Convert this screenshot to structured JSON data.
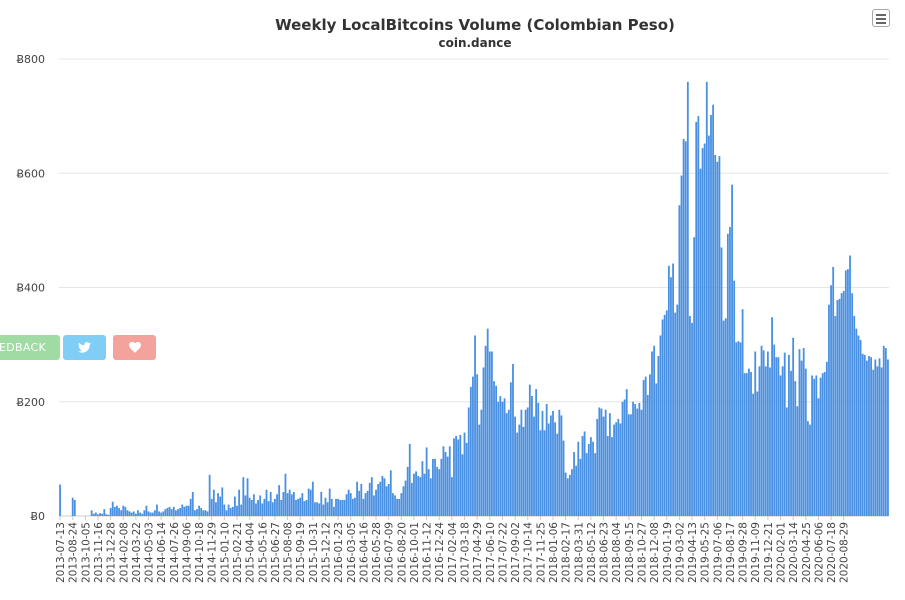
{
  "header": {
    "title": "Weekly LocalBitcoins Volume (Colombian Peso)",
    "subtitle": "coin.dance"
  },
  "buttons": {
    "feedback_label": "FEEDBACK",
    "menu_icon": "hamburger-menu-icon",
    "twitter_icon": "twitter-bird-icon",
    "heart_icon": "heart-icon"
  },
  "colors": {
    "bar": "#4a90e2",
    "feedback": "#9fdba2",
    "twitter": "#80cdf5",
    "heart": "#f3a29c"
  },
  "chart_data": {
    "type": "bar",
    "title": "Weekly LocalBitcoins Volume (Colombian Peso)",
    "subtitle": "coin.dance",
    "xlabel": "",
    "ylabel": "",
    "ylim": [
      0,
      800
    ],
    "y_ticks": [
      "Ƀ0",
      "Ƀ200",
      "Ƀ400",
      "Ƀ600",
      "Ƀ800"
    ],
    "grid": true,
    "start_week": "2013-07-13",
    "x_tick_labels": [
      "2013-07-13",
      "2013-08-24",
      "2013-10-05",
      "2013-11-16",
      "2013-12-28",
      "2014-02-08",
      "2014-03-22",
      "2014-05-03",
      "2014-06-14",
      "2014-07-26",
      "2014-09-06",
      "2014-10-18",
      "2014-11-29",
      "2015-01-10",
      "2015-02-21",
      "2015-04-04",
      "2015-05-16",
      "2015-06-27",
      "2015-08-08",
      "2015-09-19",
      "2015-10-31",
      "2015-12-12",
      "2016-01-23",
      "2016-03-05",
      "2016-04-16",
      "2016-05-28",
      "2016-07-09",
      "2016-08-20",
      "2016-10-01",
      "2016-11-12",
      "2016-12-24",
      "2017-02-04",
      "2017-03-18",
      "2017-04-29",
      "2017-06-10",
      "2017-07-22",
      "2017-09-02",
      "2017-10-14",
      "2017-11-25",
      "2018-01-06",
      "2018-02-17",
      "2018-03-31",
      "2018-05-12",
      "2018-06-23",
      "2018-08-04",
      "2018-09-15",
      "2018-10-27",
      "2018-12-08",
      "2019-01-19",
      "2019-03-02",
      "2019-04-13",
      "2019-05-25",
      "2019-07-06",
      "2019-08-17",
      "2019-09-28",
      "2019-11-09",
      "2019-12-21",
      "2020-02-01",
      "2020-03-14",
      "2020-04-25",
      "2020-06-06",
      "2020-07-18",
      "2020-08-29"
    ],
    "values": [
      55,
      0,
      0,
      0,
      0,
      0,
      32,
      28,
      0,
      0,
      0,
      0,
      0,
      0,
      0,
      10,
      4,
      6,
      3,
      5,
      4,
      12,
      3,
      2,
      14,
      25,
      16,
      18,
      14,
      10,
      18,
      16,
      10,
      8,
      6,
      8,
      4,
      10,
      6,
      4,
      10,
      18,
      8,
      6,
      6,
      10,
      20,
      8,
      6,
      8,
      12,
      14,
      16,
      12,
      16,
      10,
      12,
      14,
      20,
      16,
      18,
      18,
      30,
      42,
      10,
      12,
      18,
      14,
      10,
      10,
      8,
      72,
      30,
      46,
      24,
      40,
      34,
      50,
      20,
      10,
      20,
      14,
      16,
      34,
      18,
      46,
      20,
      68,
      36,
      66,
      32,
      28,
      38,
      22,
      28,
      36,
      22,
      30,
      46,
      26,
      42,
      24,
      30,
      38,
      54,
      28,
      42,
      74,
      40,
      46,
      38,
      42,
      28,
      30,
      32,
      40,
      26,
      28,
      48,
      46,
      60,
      24,
      24,
      22,
      42,
      20,
      32,
      24,
      48,
      30,
      16,
      30,
      30,
      28,
      28,
      28,
      38,
      46,
      40,
      30,
      32,
      60,
      44,
      56,
      30,
      40,
      44,
      58,
      68,
      36,
      46,
      56,
      60,
      70,
      66,
      52,
      56,
      80,
      40,
      36,
      30,
      30,
      40,
      52,
      62,
      86,
      126,
      58,
      74,
      78,
      70,
      68,
      96,
      74,
      120,
      82,
      66,
      100,
      100,
      86,
      82,
      100,
      122,
      112,
      104,
      122,
      68,
      136,
      140,
      134,
      142,
      108,
      146,
      128,
      190,
      226,
      244,
      316,
      248,
      160,
      186,
      260,
      298,
      328,
      288,
      288,
      236,
      228,
      200,
      210,
      200,
      206,
      180,
      186,
      234,
      266,
      174,
      146,
      160,
      186,
      156,
      186,
      190,
      230,
      210,
      174,
      222,
      198,
      150,
      184,
      150,
      196,
      162,
      176,
      184,
      164,
      144,
      186,
      176,
      132,
      76,
      66,
      72,
      82,
      112,
      88,
      130,
      100,
      140,
      148,
      110,
      126,
      138,
      130,
      110,
      170,
      190,
      188,
      174,
      186,
      140,
      180,
      138,
      160,
      164,
      170,
      162,
      200,
      204,
      222,
      178,
      178,
      200,
      196,
      188,
      198,
      186,
      238,
      244,
      212,
      248,
      288,
      298,
      232,
      280,
      316,
      344,
      352,
      360,
      438,
      418,
      442,
      356,
      370,
      544,
      596,
      660,
      656,
      760,
      350,
      338,
      488,
      690,
      700,
      608,
      644,
      652,
      760,
      666,
      702,
      720,
      632,
      620,
      630,
      470,
      342,
      346,
      494,
      506,
      580,
      412,
      304,
      306,
      304,
      362,
      250,
      250,
      258,
      252,
      214,
      288,
      218,
      262,
      298,
      290,
      262,
      288,
      260,
      348,
      300,
      278,
      278,
      246,
      262,
      286,
      190,
      282,
      254,
      312,
      236,
      192,
      292,
      272,
      294,
      258,
      166,
      160,
      246,
      240,
      246,
      206,
      242,
      250,
      252,
      270,
      370,
      404,
      436,
      350,
      378,
      380,
      390,
      394,
      430,
      432,
      456,
      390,
      350,
      328,
      316,
      308,
      284,
      282,
      272,
      280,
      278,
      256,
      274,
      262,
      276,
      260,
      298,
      294,
      274
    ]
  }
}
